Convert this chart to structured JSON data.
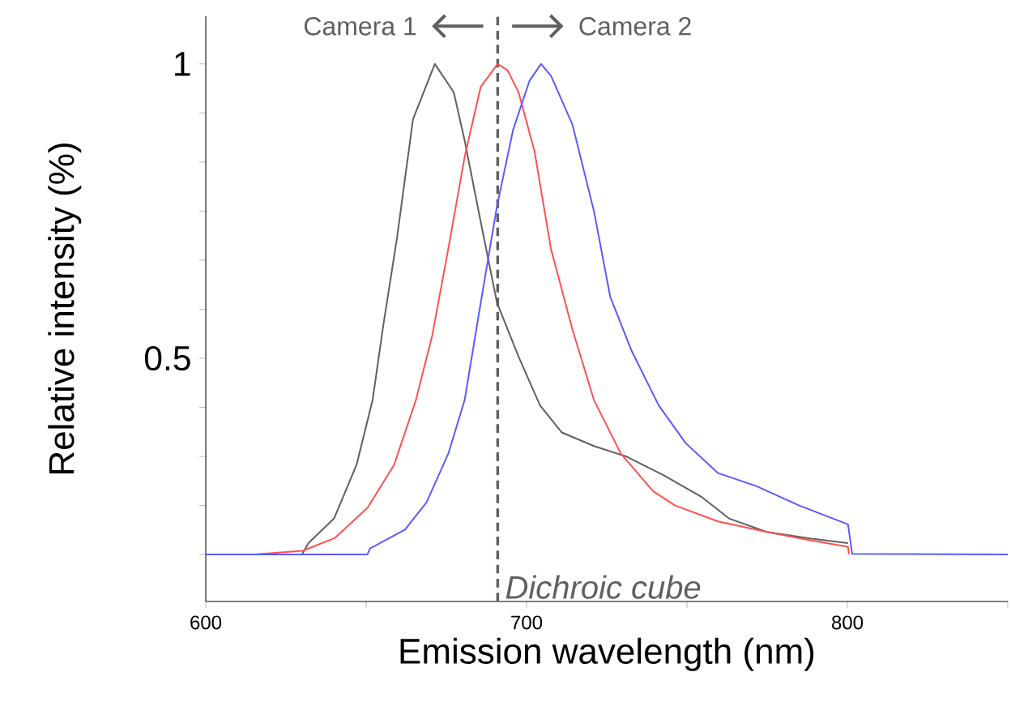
{
  "chart_data": {
    "type": "line",
    "xlabel": "Emission wavelength (nm)",
    "ylabel": "Relative intensity (%)",
    "xlim": [
      600,
      850
    ],
    "ylim": [
      0.087,
      1.081
    ],
    "xticks": [
      600,
      {
        "value": 650,
        "label": null
      },
      700,
      {
        "value": 750,
        "label": null
      },
      800,
      {
        "value": 850,
        "label": null
      }
    ],
    "yticks": [
      {
        "value": 0.1667,
        "label": null
      },
      {
        "value": 0.25,
        "label": null
      },
      {
        "value": 0.3333,
        "label": null
      },
      {
        "value": 0.4167,
        "label": null
      },
      0.5,
      {
        "value": 0.5833,
        "label": null
      },
      {
        "value": 0.6667,
        "label": null
      },
      {
        "value": 0.75,
        "label": null
      },
      {
        "value": 0.8333,
        "label": null
      },
      {
        "value": 0.9167,
        "label": null
      },
      1
    ],
    "series": [
      {
        "color": "#606060",
        "x": [
          600,
          630,
          632,
          640,
          647,
          652,
          655.4,
          659.6,
          664.6,
          671.4,
          677.3,
          680.7,
          685.7,
          690.8,
          697.5,
          704.2,
          711,
          721,
          731.2,
          742.9,
          754.7,
          763.1,
          774.9,
          788.4,
          800.2
        ],
        "values": [
          0.167,
          0.167,
          0.186,
          0.228,
          0.319,
          0.429,
          0.558,
          0.704,
          0.906,
          1.0,
          0.952,
          0.87,
          0.732,
          0.594,
          0.503,
          0.42,
          0.374,
          0.351,
          0.333,
          0.301,
          0.264,
          0.228,
          0.205,
          0.194,
          0.186
        ]
      },
      {
        "color": "#ff5050",
        "x": [
          615,
          630.2,
          640.3,
          650.4,
          658.7,
          665.5,
          670.6,
          675.6,
          680.7,
          685.7,
          691,
          694.1,
          697.5,
          702.5,
          707.6,
          714.3,
          721,
          729.4,
          739.5,
          746.3,
          759.7,
          774.9,
          788.4,
          800.2,
          800.5
        ],
        "values": [
          0.167,
          0.173,
          0.195,
          0.246,
          0.319,
          0.429,
          0.539,
          0.686,
          0.842,
          0.961,
          1.0,
          0.989,
          0.952,
          0.851,
          0.686,
          0.549,
          0.429,
          0.338,
          0.274,
          0.25,
          0.223,
          0.205,
          0.191,
          0.18,
          0.167
        ]
      },
      {
        "color": "#5a5aff",
        "x": [
          600,
          650.4,
          651.2,
          662.1,
          668.8,
          675.6,
          680.7,
          685.7,
          690.8,
          695.8,
          700.9,
          704.5,
          707.6,
          714.3,
          721,
          726.1,
          732.8,
          741.2,
          749.6,
          759.7,
          771.6,
          785,
          800.2,
          801.5,
          850
        ],
        "values": [
          0.167,
          0.167,
          0.177,
          0.209,
          0.255,
          0.338,
          0.429,
          0.594,
          0.759,
          0.888,
          0.971,
          1.0,
          0.98,
          0.897,
          0.75,
          0.604,
          0.512,
          0.42,
          0.356,
          0.305,
          0.283,
          0.25,
          0.218,
          0.168,
          0.167
        ]
      }
    ],
    "ref_lines": [
      {
        "axis": "x",
        "value": 691,
        "label": "Dichroic cube",
        "color": "#606060",
        "line_style": "dashed"
      }
    ],
    "annotations": [
      "Camera 1",
      "Camera 2"
    ]
  }
}
